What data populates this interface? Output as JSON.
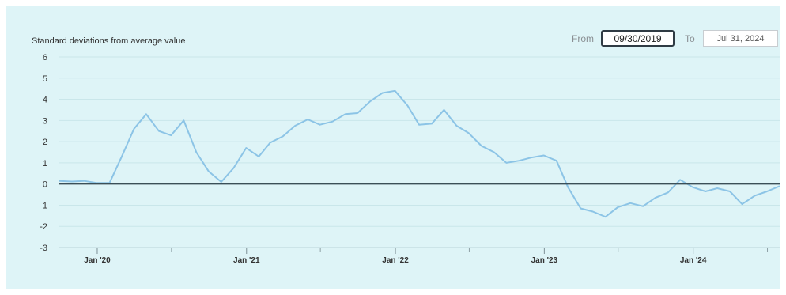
{
  "range": {
    "from_label": "From",
    "from_value": "09/30/2019",
    "to_label": "To",
    "to_value": "Jul 31, 2024"
  },
  "colors": {
    "background": "#def4f7",
    "line": "#8cc4e6",
    "zero_line": "#3b4f57",
    "grid": "#c9e6ea"
  },
  "chart_data": {
    "type": "line",
    "ylabel": "Standard deviations from average value",
    "ylim": [
      -3,
      6
    ],
    "yticks": [
      6,
      5,
      4,
      3,
      2,
      1,
      0,
      -1,
      -2,
      -3
    ],
    "xlim": [
      "2019-09-30",
      "2024-07-31"
    ],
    "xticks": [
      {
        "date": "2020-01-01",
        "label": "Jan '20"
      },
      {
        "date": "2021-01-01",
        "label": "Jan '21"
      },
      {
        "date": "2022-01-01",
        "label": "Jan '22"
      },
      {
        "date": "2023-01-01",
        "label": "Jan '23"
      },
      {
        "date": "2024-01-01",
        "label": "Jan '24"
      }
    ],
    "minor_ticks": [
      "2020-07-01",
      "2021-07-01",
      "2022-07-01",
      "2023-07-01",
      "2024-07-01"
    ],
    "grid": true,
    "series": [
      {
        "x": [
          "2019-09-30",
          "2019-10-31",
          "2019-11-30",
          "2019-12-31",
          "2020-01-31",
          "2020-02-29",
          "2020-03-31",
          "2020-04-30",
          "2020-05-31",
          "2020-06-30",
          "2020-07-31",
          "2020-08-31",
          "2020-09-30",
          "2020-10-31",
          "2020-11-30",
          "2020-12-31",
          "2021-01-31",
          "2021-02-28",
          "2021-03-31",
          "2021-04-30",
          "2021-05-31",
          "2021-06-30",
          "2021-07-31",
          "2021-08-31",
          "2021-09-30",
          "2021-10-31",
          "2021-11-30",
          "2021-12-31",
          "2022-01-31",
          "2022-02-28",
          "2022-03-31",
          "2022-04-30",
          "2022-05-31",
          "2022-06-30",
          "2022-07-31",
          "2022-08-31",
          "2022-09-30",
          "2022-10-31",
          "2022-11-30",
          "2022-12-31",
          "2023-01-31",
          "2023-02-28",
          "2023-03-31",
          "2023-04-30",
          "2023-05-31",
          "2023-06-30",
          "2023-07-31",
          "2023-08-31",
          "2023-09-30",
          "2023-10-31",
          "2023-11-30",
          "2023-12-31",
          "2024-01-31",
          "2024-02-29",
          "2024-03-31",
          "2024-04-30",
          "2024-05-31",
          "2024-06-30",
          "2024-07-31"
        ],
        "values": [
          0.15,
          0.12,
          0.15,
          0.05,
          0.05,
          1.25,
          2.6,
          3.3,
          2.5,
          2.3,
          3.0,
          1.5,
          0.6,
          0.1,
          0.75,
          1.7,
          1.3,
          1.95,
          2.25,
          2.75,
          3.05,
          2.8,
          2.95,
          3.3,
          3.35,
          3.9,
          4.3,
          4.4,
          3.7,
          2.8,
          2.85,
          3.5,
          2.75,
          2.4,
          1.8,
          1.5,
          1.0,
          1.1,
          1.25,
          1.35,
          1.1,
          -0.15,
          -1.15,
          -1.3,
          -1.55,
          -1.1,
          -0.9,
          -1.05,
          -0.65,
          -0.4,
          0.2,
          -0.15,
          -0.35,
          -0.2,
          -0.35,
          -0.95,
          -0.55,
          -0.35,
          -0.1
        ]
      }
    ]
  }
}
